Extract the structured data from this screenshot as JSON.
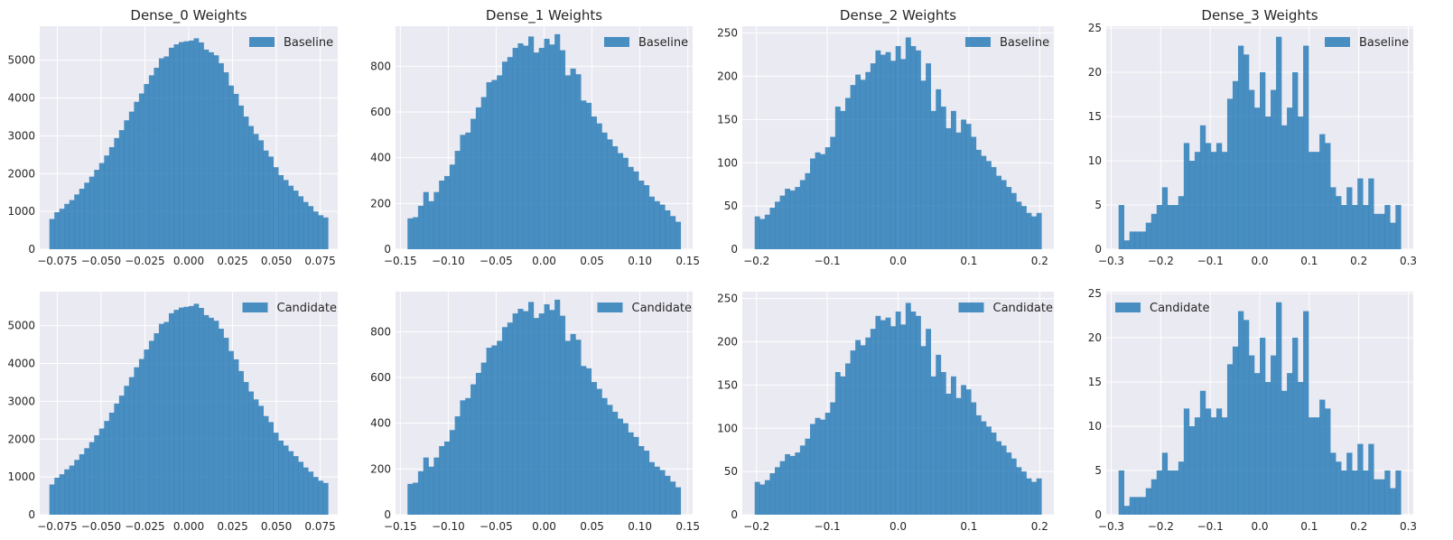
{
  "figure": {
    "background": "#ffffff",
    "axes_face": "#eaeaf2",
    "grid_color": "#ffffff",
    "bar_color": "#2077b4"
  },
  "chart_data": [
    {
      "type": "bar",
      "subplot": "row1-col1",
      "title": "Dense_0 Weights",
      "legend": "Baseline",
      "legend_loc": "upper right",
      "grid": true,
      "xlim": [
        -0.085,
        0.085
      ],
      "ylim": [
        0,
        5900
      ],
      "xticks": [
        -0.075,
        -0.05,
        -0.025,
        0.0,
        0.025,
        0.05,
        0.075
      ],
      "xtick_labels": [
        "−0.075",
        "−0.050",
        "−0.025",
        "0.000",
        "0.025",
        "0.050",
        "0.075"
      ],
      "yticks": [
        0,
        1000,
        2000,
        3000,
        4000,
        5000
      ],
      "yticks_labels": [
        "0",
        "1000",
        "2000",
        "3000",
        "4000",
        "5000"
      ],
      "bin_range": [
        -0.0795,
        0.0795
      ],
      "values": [
        800,
        980,
        1070,
        1200,
        1300,
        1450,
        1600,
        1760,
        1920,
        2100,
        2280,
        2480,
        2700,
        2940,
        3150,
        3410,
        3640,
        3900,
        4120,
        4370,
        4600,
        4800,
        5050,
        5100,
        5330,
        5420,
        5480,
        5500,
        5520,
        5580,
        5470,
        5280,
        5210,
        5130,
        4920,
        4680,
        4330,
        4110,
        3800,
        3510,
        3260,
        3050,
        2880,
        2610,
        2450,
        2170,
        1960,
        1830,
        1680,
        1550,
        1400,
        1250,
        1140,
        1000,
        900,
        840
      ]
    },
    {
      "type": "bar",
      "subplot": "row1-col2",
      "title": "Dense_1 Weights",
      "legend": "Baseline",
      "legend_loc": "upper right",
      "grid": true,
      "xlim": [
        -0.155,
        0.155
      ],
      "ylim": [
        0,
        975
      ],
      "xticks": [
        -0.15,
        -0.1,
        -0.05,
        0.0,
        0.05,
        0.1,
        0.15
      ],
      "xtick_labels": [
        "−0.15",
        "−0.10",
        "−0.05",
        "0.00",
        "0.05",
        "0.10",
        "0.15"
      ],
      "yticks": [
        0,
        200,
        400,
        600,
        800
      ],
      "yticks_labels": [
        "0",
        "200",
        "400",
        "600",
        "800"
      ],
      "bin_range": [
        -0.1425,
        0.1425
      ],
      "values": [
        135,
        140,
        190,
        250,
        210,
        250,
        300,
        320,
        370,
        430,
        500,
        510,
        570,
        620,
        665,
        730,
        740,
        760,
        820,
        840,
        880,
        900,
        890,
        930,
        860,
        880,
        920,
        895,
        940,
        870,
        760,
        790,
        765,
        650,
        640,
        580,
        550,
        510,
        480,
        450,
        420,
        400,
        360,
        340,
        300,
        280,
        230,
        210,
        195,
        170,
        145,
        120
      ]
    },
    {
      "type": "bar",
      "subplot": "row1-col3",
      "title": "Dense_2 Weights",
      "legend": "Baseline",
      "legend_loc": "upper right",
      "grid": true,
      "xlim": [
        -0.22,
        0.22
      ],
      "ylim": [
        0,
        258
      ],
      "xticks": [
        -0.2,
        -0.1,
        0.0,
        0.1,
        0.2
      ],
      "xtick_labels": [
        "−0.2",
        "−0.1",
        "0.0",
        "0.1",
        "0.2"
      ],
      "yticks": [
        0,
        50,
        100,
        150,
        200,
        250
      ],
      "yticks_labels": [
        "0",
        "50",
        "100",
        "150",
        "200",
        "250"
      ],
      "bin_range": [
        -0.2025,
        0.2025
      ],
      "values": [
        38,
        35,
        40,
        48,
        55,
        62,
        70,
        68,
        72,
        80,
        88,
        105,
        112,
        110,
        118,
        130,
        165,
        160,
        175,
        190,
        202,
        196,
        205,
        215,
        230,
        225,
        228,
        218,
        235,
        220,
        245,
        235,
        230,
        195,
        215,
        160,
        185,
        165,
        140,
        160,
        135,
        150,
        145,
        130,
        115,
        108,
        102,
        95,
        85,
        80,
        72,
        65,
        55,
        50,
        42,
        38,
        42
      ]
    },
    {
      "type": "bar",
      "subplot": "row1-col4",
      "title": "Dense_3 Weights",
      "legend": "Baseline",
      "legend_loc": "upper right",
      "grid": true,
      "xlim": [
        -0.31,
        0.31
      ],
      "ylim": [
        0,
        25.2
      ],
      "xticks": [
        -0.3,
        -0.2,
        -0.1,
        0.0,
        0.1,
        0.2,
        0.3
      ],
      "xtick_labels": [
        "−0.3",
        "−0.2",
        "−0.1",
        "0.0",
        "0.1",
        "0.2",
        "0.3"
      ],
      "yticks": [
        0,
        5,
        10,
        15,
        20,
        25
      ],
      "yticks_labels": [
        "0",
        "5",
        "10",
        "15",
        "20",
        "25"
      ],
      "bin_range": [
        -0.285,
        0.285
      ],
      "values": [
        5,
        1,
        2,
        2,
        2,
        3,
        4,
        5,
        7,
        5,
        5,
        6,
        12,
        10,
        11,
        14,
        12,
        11,
        12,
        11,
        17,
        19,
        23,
        22,
        18,
        16,
        20,
        15,
        18,
        24,
        14,
        16,
        20,
        15,
        23,
        11,
        11,
        13,
        12,
        7,
        6,
        5,
        7,
        5,
        8,
        5,
        8,
        4,
        4,
        5,
        3,
        5
      ]
    },
    {
      "type": "bar",
      "subplot": "row2-col1",
      "title": "",
      "legend": "Candidate",
      "legend_loc": "upper right",
      "grid": true,
      "xlim": [
        -0.085,
        0.085
      ],
      "ylim": [
        0,
        5900
      ],
      "xticks": [
        -0.075,
        -0.05,
        -0.025,
        0.0,
        0.025,
        0.05,
        0.075
      ],
      "xtick_labels": [
        "−0.075",
        "−0.050",
        "−0.025",
        "0.000",
        "0.025",
        "0.050",
        "0.075"
      ],
      "yticks": [
        0,
        1000,
        2000,
        3000,
        4000,
        5000
      ],
      "yticks_labels": [
        "0",
        "1000",
        "2000",
        "3000",
        "4000",
        "5000"
      ],
      "bin_range": [
        -0.0795,
        0.0795
      ],
      "values": [
        800,
        980,
        1070,
        1200,
        1300,
        1450,
        1600,
        1760,
        1920,
        2100,
        2280,
        2480,
        2700,
        2940,
        3150,
        3410,
        3640,
        3900,
        4120,
        4370,
        4600,
        4800,
        5050,
        5100,
        5330,
        5420,
        5480,
        5500,
        5520,
        5580,
        5470,
        5280,
        5210,
        5130,
        4920,
        4680,
        4330,
        4110,
        3800,
        3510,
        3260,
        3050,
        2880,
        2610,
        2450,
        2170,
        1960,
        1830,
        1680,
        1550,
        1400,
        1250,
        1140,
        1000,
        900,
        840
      ]
    },
    {
      "type": "bar",
      "subplot": "row2-col2",
      "title": "",
      "legend": "Candidate",
      "legend_loc": "upper right",
      "grid": true,
      "xlim": [
        -0.155,
        0.155
      ],
      "ylim": [
        0,
        975
      ],
      "xticks": [
        -0.15,
        -0.1,
        -0.05,
        0.0,
        0.05,
        0.1,
        0.15
      ],
      "xtick_labels": [
        "−0.15",
        "−0.10",
        "−0.05",
        "0.00",
        "0.05",
        "0.10",
        "0.15"
      ],
      "yticks": [
        0,
        200,
        400,
        600,
        800
      ],
      "yticks_labels": [
        "0",
        "200",
        "400",
        "600",
        "800"
      ],
      "bin_range": [
        -0.1425,
        0.1425
      ],
      "values": [
        135,
        140,
        190,
        250,
        210,
        250,
        300,
        320,
        370,
        430,
        500,
        510,
        570,
        620,
        665,
        730,
        740,
        760,
        820,
        840,
        880,
        900,
        890,
        930,
        860,
        880,
        920,
        895,
        940,
        870,
        760,
        790,
        765,
        650,
        640,
        580,
        550,
        510,
        480,
        450,
        420,
        400,
        360,
        340,
        300,
        280,
        230,
        210,
        195,
        170,
        145,
        120
      ]
    },
    {
      "type": "bar",
      "subplot": "row2-col3",
      "title": "",
      "legend": "Candidate",
      "legend_loc": "upper right",
      "grid": true,
      "xlim": [
        -0.22,
        0.22
      ],
      "ylim": [
        0,
        258
      ],
      "xticks": [
        -0.2,
        -0.1,
        0.0,
        0.1,
        0.2
      ],
      "xtick_labels": [
        "−0.2",
        "−0.1",
        "0.0",
        "0.1",
        "0.2"
      ],
      "yticks": [
        0,
        50,
        100,
        150,
        200,
        250
      ],
      "yticks_labels": [
        "0",
        "50",
        "100",
        "150",
        "200",
        "250"
      ],
      "bin_range": [
        -0.2025,
        0.2025
      ],
      "values": [
        38,
        35,
        40,
        48,
        55,
        62,
        70,
        68,
        72,
        80,
        88,
        105,
        112,
        110,
        118,
        130,
        165,
        160,
        175,
        190,
        202,
        196,
        205,
        215,
        230,
        225,
        228,
        218,
        235,
        220,
        245,
        235,
        230,
        195,
        215,
        160,
        185,
        165,
        140,
        160,
        135,
        150,
        145,
        130,
        115,
        108,
        102,
        95,
        85,
        80,
        72,
        65,
        55,
        50,
        42,
        38,
        42
      ]
    },
    {
      "type": "bar",
      "subplot": "row2-col4",
      "title": "",
      "legend": "Candidate",
      "legend_loc": "upper left",
      "grid": true,
      "xlim": [
        -0.31,
        0.31
      ],
      "ylim": [
        0,
        25.2
      ],
      "xticks": [
        -0.3,
        -0.2,
        -0.1,
        0.0,
        0.1,
        0.2,
        0.3
      ],
      "xtick_labels": [
        "−0.3",
        "−0.2",
        "−0.1",
        "0.0",
        "0.1",
        "0.2",
        "0.3"
      ],
      "yticks": [
        0,
        5,
        10,
        15,
        20,
        25
      ],
      "yticks_labels": [
        "0",
        "5",
        "10",
        "15",
        "20",
        "25"
      ],
      "bin_range": [
        -0.285,
        0.285
      ],
      "values": [
        5,
        1,
        2,
        2,
        2,
        3,
        4,
        5,
        7,
        5,
        5,
        6,
        12,
        10,
        11,
        14,
        12,
        11,
        12,
        11,
        17,
        19,
        23,
        22,
        18,
        16,
        20,
        15,
        18,
        24,
        14,
        16,
        20,
        15,
        23,
        11,
        11,
        13,
        12,
        7,
        6,
        5,
        7,
        5,
        8,
        5,
        8,
        4,
        4,
        5,
        3,
        5
      ]
    }
  ]
}
